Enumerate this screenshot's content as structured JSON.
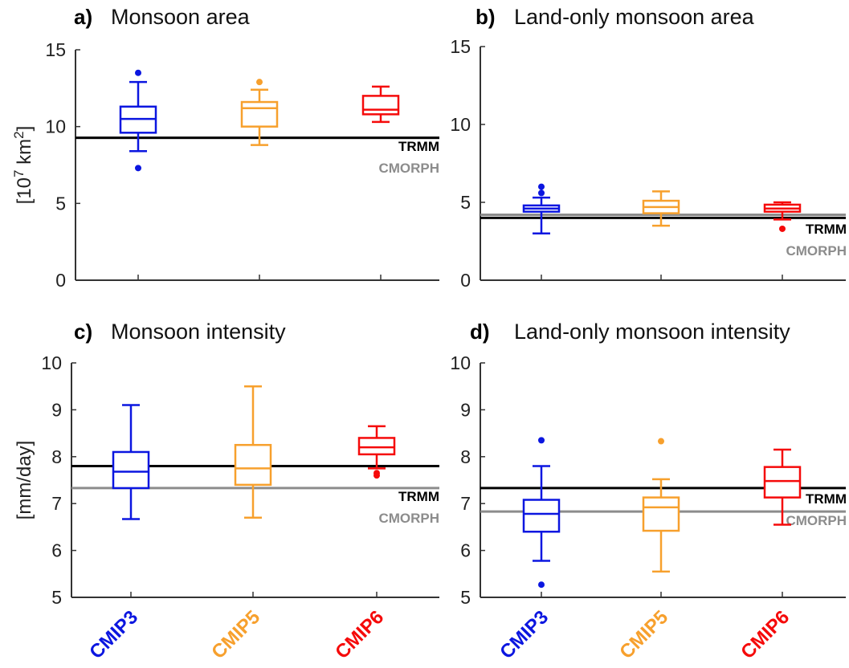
{
  "colors": {
    "CMIP3": "#0b16e0",
    "CMIP5": "#f7a02d",
    "CMIP6": "#f50a0a",
    "TRMM": "#000000",
    "CMORPH": "#8c8c8c",
    "axis": "#333333"
  },
  "chart_data": [
    {
      "type": "box",
      "panel_letter": "a)",
      "title": "Monsoon area",
      "ylabel": "[10",
      "ylabel_exp": "7",
      "ylabel_unit": " km",
      "ylabel_unit_exp": "2",
      "ylabel_end": "]",
      "ylim": [
        0,
        15
      ],
      "yticks": [
        "0",
        "5",
        "10",
        "15"
      ],
      "categories": [
        "CMIP3",
        "CMIP5",
        "CMIP6"
      ],
      "boxes": [
        {
          "min": 8.4,
          "q1": 9.6,
          "median": 10.5,
          "q3": 11.3,
          "max": 12.9,
          "outliers": [
            13.5,
            7.3
          ]
        },
        {
          "min": 8.8,
          "q1": 10.0,
          "median": 11.2,
          "q3": 11.6,
          "max": 12.4,
          "outliers": [
            12.9
          ]
        },
        {
          "min": 10.3,
          "q1": 10.8,
          "median": 11.1,
          "q3": 12.0,
          "max": 12.6,
          "outliers": []
        }
      ],
      "reference": [
        {
          "name": "TRMM",
          "value": 9.27
        },
        {
          "name": "CMORPH",
          "value": 9.27
        }
      ]
    },
    {
      "type": "box",
      "panel_letter": "b)",
      "title": "Land-only monsoon area",
      "ylim": [
        0,
        15
      ],
      "yticks": [
        "0",
        "5",
        "10",
        "15"
      ],
      "categories": [
        "CMIP3",
        "CMIP5",
        "CMIP6"
      ],
      "boxes": [
        {
          "min": 3.0,
          "q1": 4.4,
          "median": 4.6,
          "q3": 4.8,
          "max": 5.3,
          "outliers": [
            6.0,
            5.6
          ]
        },
        {
          "min": 3.5,
          "q1": 4.3,
          "median": 4.7,
          "q3": 5.1,
          "max": 5.7,
          "outliers": []
        },
        {
          "min": 3.9,
          "q1": 4.4,
          "median": 4.6,
          "q3": 4.85,
          "max": 5.0,
          "outliers": [
            3.3
          ]
        }
      ],
      "reference": [
        {
          "name": "TRMM",
          "value": 4.0
        },
        {
          "name": "CMORPH",
          "value": 4.2
        }
      ]
    },
    {
      "type": "box",
      "panel_letter": "c)",
      "title": "Monsoon intensity",
      "ylabel": "[mm/day]",
      "ylim": [
        5,
        10
      ],
      "yticks": [
        "5",
        "6",
        "7",
        "8",
        "9",
        "10"
      ],
      "categories": [
        "CMIP3",
        "CMIP5",
        "CMIP6"
      ],
      "boxes": [
        {
          "min": 6.67,
          "q1": 7.33,
          "median": 7.68,
          "q3": 8.1,
          "max": 9.1,
          "outliers": []
        },
        {
          "min": 6.7,
          "q1": 7.4,
          "median": 7.75,
          "q3": 8.25,
          "max": 9.5,
          "outliers": []
        },
        {
          "min": 7.75,
          "q1": 8.05,
          "median": 8.2,
          "q3": 8.4,
          "max": 8.65,
          "outliers": [
            7.65,
            7.6
          ]
        }
      ],
      "reference": [
        {
          "name": "TRMM",
          "value": 7.8
        },
        {
          "name": "CMORPH",
          "value": 7.33
        }
      ]
    },
    {
      "type": "box",
      "panel_letter": "d)",
      "title": "Land-only monsoon intensity",
      "ylim": [
        5,
        10
      ],
      "yticks": [
        "5",
        "6",
        "7",
        "8",
        "9",
        "10"
      ],
      "categories": [
        "CMIP3",
        "CMIP5",
        "CMIP6"
      ],
      "boxes": [
        {
          "min": 5.78,
          "q1": 6.4,
          "median": 6.78,
          "q3": 7.08,
          "max": 7.8,
          "outliers": [
            8.35,
            5.27
          ]
        },
        {
          "min": 5.55,
          "q1": 6.42,
          "median": 6.92,
          "q3": 7.13,
          "max": 7.52,
          "outliers": [
            8.33
          ]
        },
        {
          "min": 6.55,
          "q1": 7.13,
          "median": 7.48,
          "q3": 7.78,
          "max": 8.15,
          "outliers": []
        }
      ],
      "reference": [
        {
          "name": "TRMM",
          "value": 7.33
        },
        {
          "name": "CMORPH",
          "value": 6.83
        }
      ]
    }
  ]
}
